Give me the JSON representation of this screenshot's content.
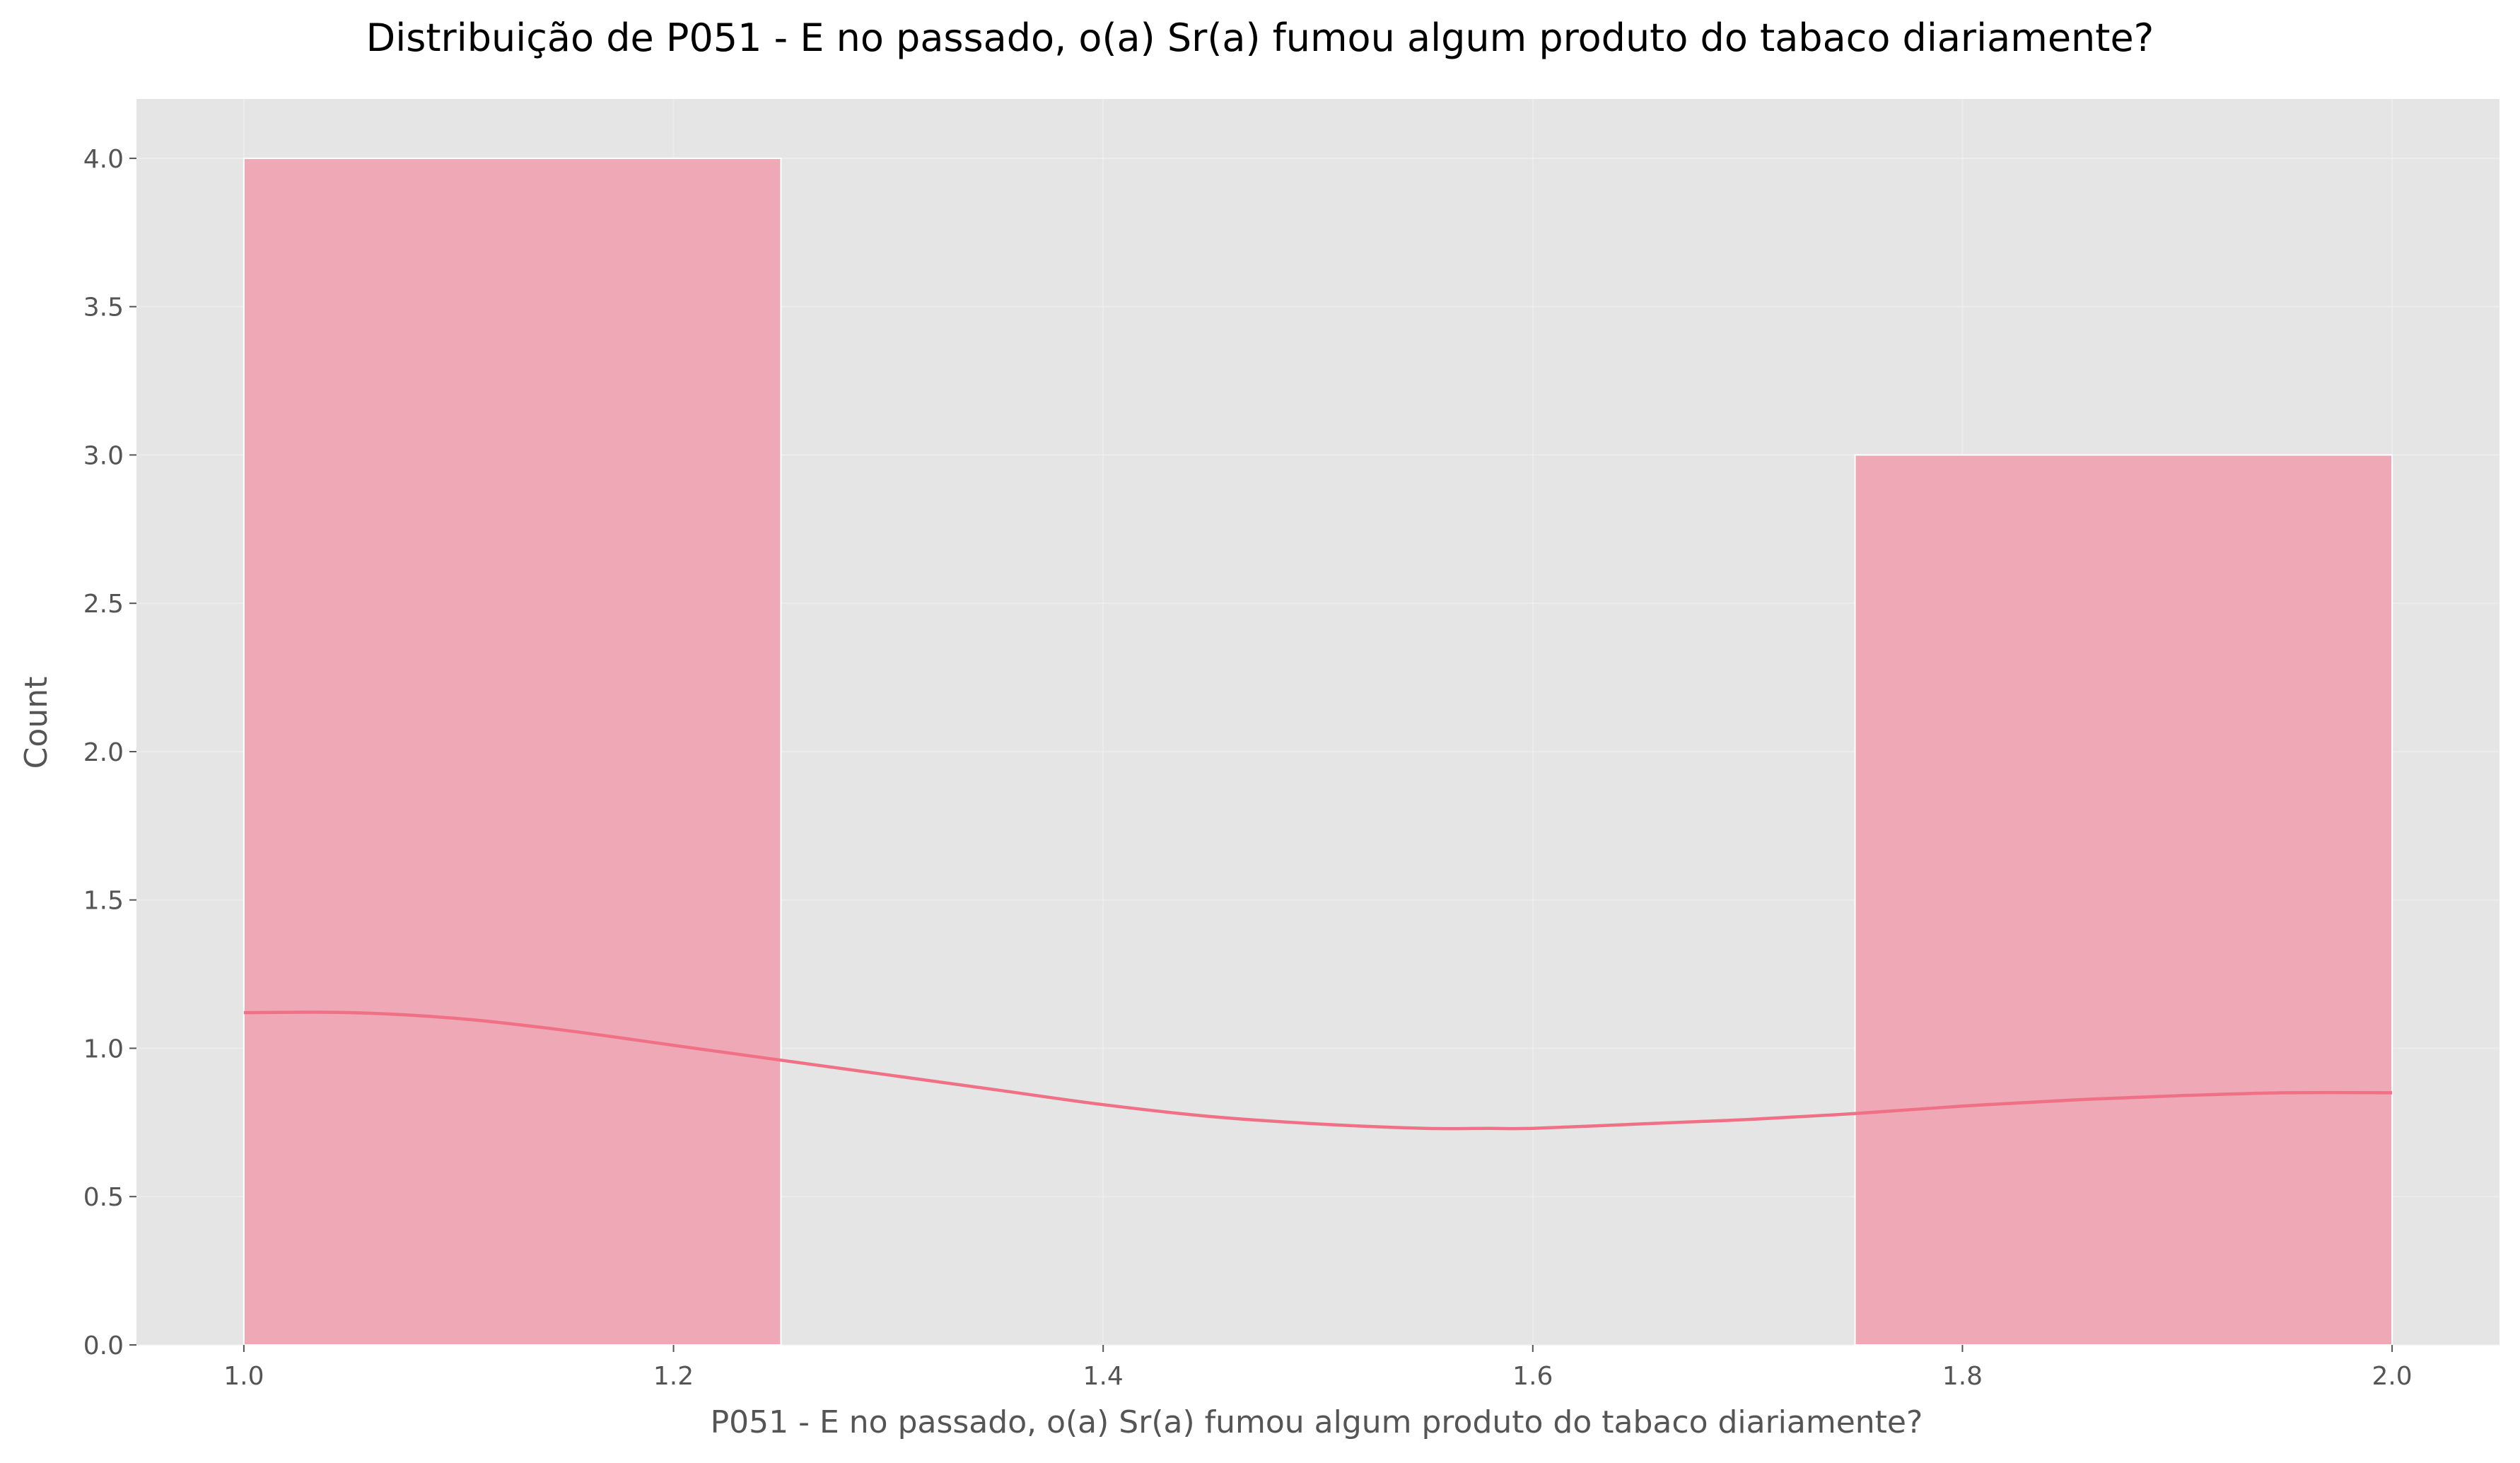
{
  "chart_data": {
    "type": "bar",
    "title": "Distribuição de P051 - E no passado, o(a) Sr(a) fumou algum produto do tabaco diariamente?",
    "xlabel": "P051 - E no passado, o(a) Sr(a) fumou algum produto do tabaco diariamente?",
    "ylabel": "Count",
    "xlim": [
      0.95,
      2.05
    ],
    "ylim": [
      0,
      4.2
    ],
    "x_ticks": [
      1.0,
      1.2,
      1.4,
      1.6,
      1.8,
      2.0
    ],
    "x_tick_labels": [
      "1.0",
      "1.2",
      "1.4",
      "1.6",
      "1.8",
      "2.0"
    ],
    "y_ticks": [
      0,
      0.5,
      1.0,
      1.5,
      2.0,
      2.5,
      3.0,
      3.5,
      4.0
    ],
    "y_tick_labels": [
      "0.0",
      "0.5",
      "1.0",
      "1.5",
      "2.0",
      "2.5",
      "3.0",
      "3.5",
      "4.0"
    ],
    "bins": [
      {
        "x0": 1.0,
        "x1": 1.25,
        "count": 4
      },
      {
        "x0": 1.25,
        "x1": 1.5,
        "count": 0
      },
      {
        "x0": 1.5,
        "x1": 1.75,
        "count": 0
      },
      {
        "x0": 1.75,
        "x1": 2.0,
        "count": 3
      }
    ],
    "kde": {
      "x": [
        1.0,
        1.05,
        1.1,
        1.15,
        1.2,
        1.25,
        1.3,
        1.35,
        1.4,
        1.45,
        1.5,
        1.55,
        1.58,
        1.6,
        1.65,
        1.7,
        1.75,
        1.8,
        1.85,
        1.9,
        1.95,
        2.0
      ],
      "y": [
        1.12,
        1.12,
        1.1,
        1.06,
        1.01,
        0.96,
        0.91,
        0.86,
        0.81,
        0.77,
        0.745,
        0.73,
        0.73,
        0.73,
        0.745,
        0.76,
        0.78,
        0.805,
        0.825,
        0.84,
        0.85,
        0.85
      ]
    },
    "grid": true,
    "colors": {
      "plot_background": "#e5e5e5",
      "grid": "#f0f0f0",
      "bar_fill": "#eea8b6",
      "bar_edge": "#ffffff",
      "kde_line": "#f07086",
      "text": "#555555",
      "title": "#000000"
    }
  }
}
